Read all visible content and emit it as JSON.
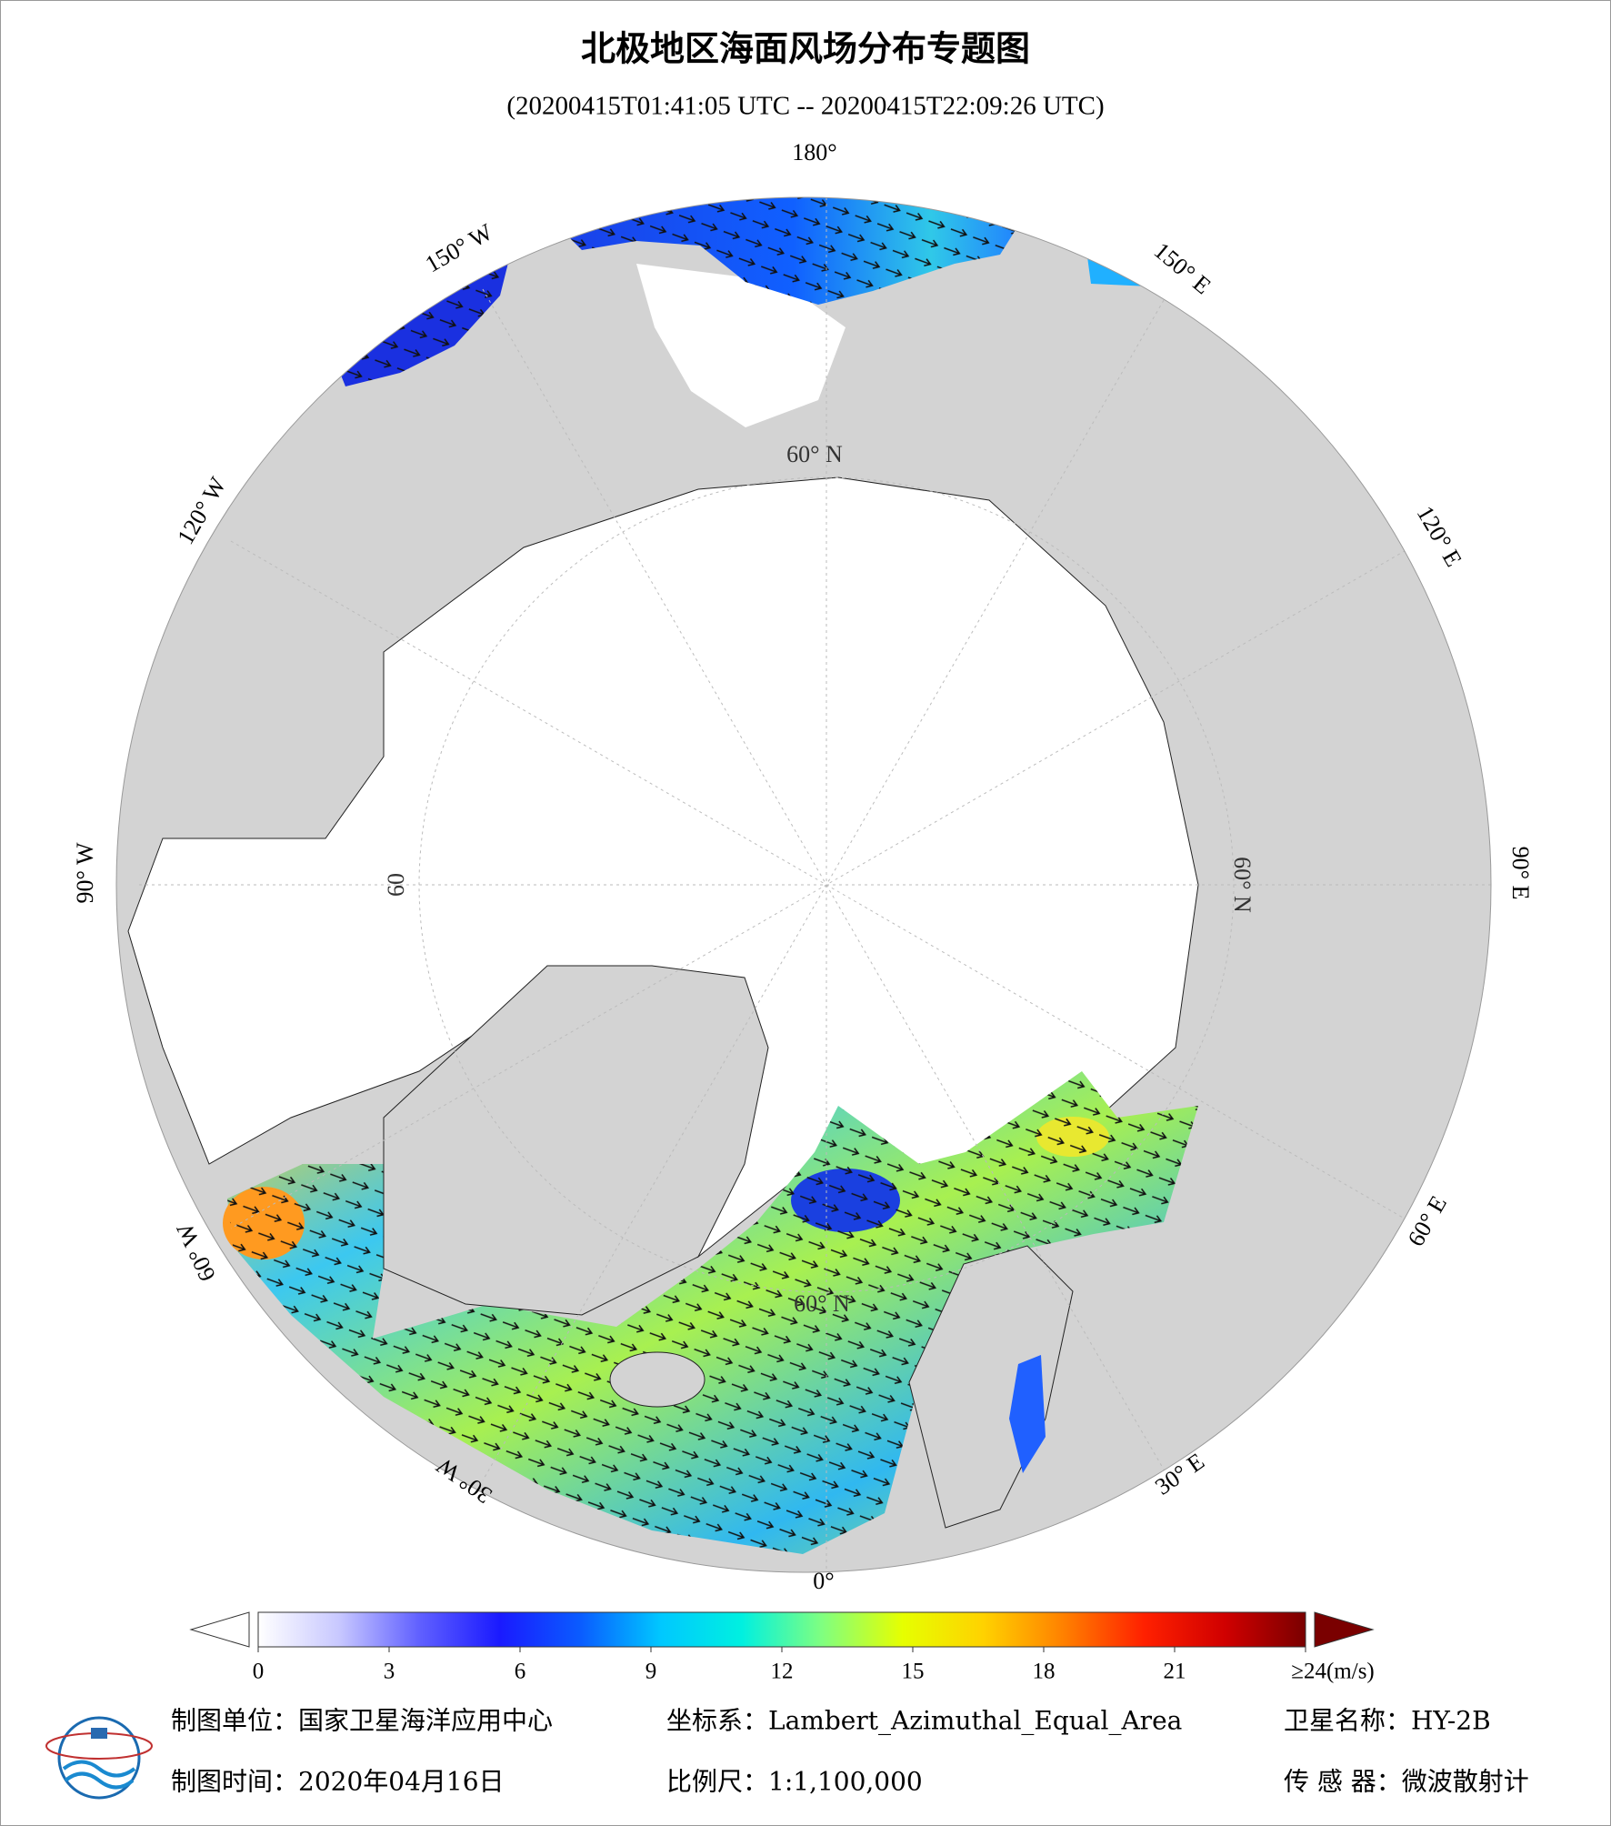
{
  "header": {
    "title": "北极地区海面风场分布专题图",
    "subtitle": "(20200415T01:41:05 UTC -- 20200415T22:09:26 UTC)"
  },
  "map": {
    "longitude_labels": [
      "180°",
      "150° E",
      "120° E",
      "90° E",
      "60° E",
      "30° E",
      "0°",
      "30° W",
      "60° W",
      "90° W",
      "120° W",
      "150° W"
    ],
    "latitude_labels": [
      "60° N",
      "60° N",
      "60° N",
      "60"
    ]
  },
  "colorbar": {
    "range": [
      0,
      24
    ],
    "ticks": [
      0,
      3,
      6,
      9,
      12,
      15,
      18,
      21,
      {
        "value": 24,
        "label": "≥24(m/s)"
      }
    ],
    "colors": [
      "#ffffff",
      "#c8c8ff",
      "#6060ff",
      "#1a1aff",
      "#0a5cff",
      "#00c8ff",
      "#00f0e0",
      "#80ff80",
      "#e6ff00",
      "#ffd200",
      "#ff8000",
      "#ff2000",
      "#d00000",
      "#7a0000"
    ]
  },
  "footer": {
    "unit": "制图单位：国家卫星海洋应用中心",
    "projection": "坐标系：Lambert_Azimuthal_Equal_Area",
    "satellite": "卫星名称：HY-2B",
    "date": "制图时间：2020年04月16日",
    "scale": "比例尺：1:1,100,000",
    "sensor": "传 感 器：微波散射计"
  }
}
